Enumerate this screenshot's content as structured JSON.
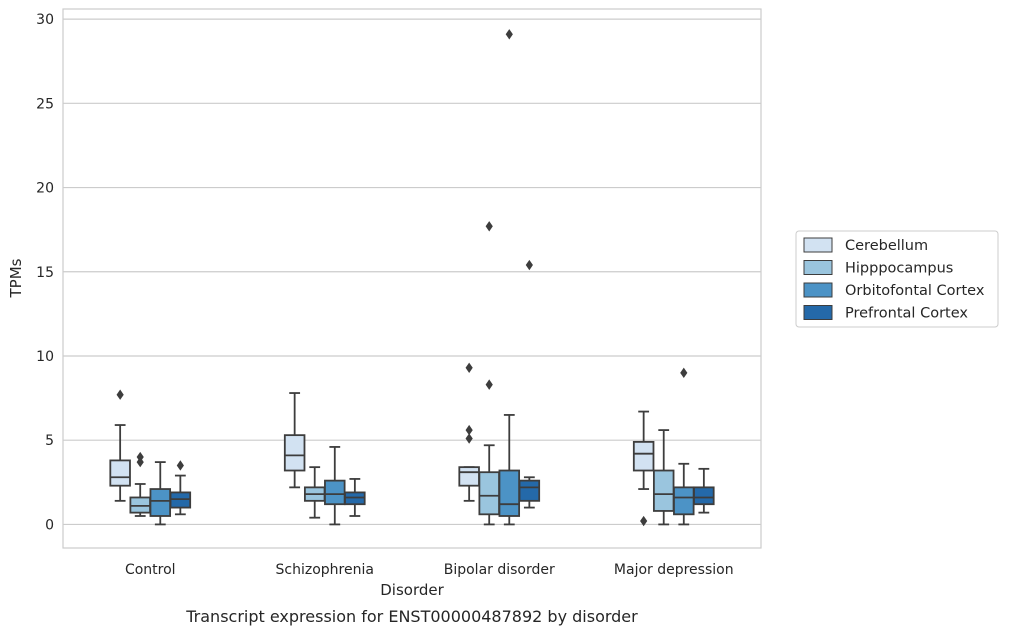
{
  "chart_data": {
    "type": "box",
    "title": "",
    "caption": "Transcript expression for ENST00000487892 by disorder",
    "xlabel": "Disorder",
    "ylabel": "TPMs",
    "ylim": [
      -1.4,
      30.6
    ],
    "yticks": [
      0,
      5,
      10,
      15,
      20,
      25,
      30
    ],
    "grid": "horizontal",
    "legend_placement": "right-outside",
    "categories": [
      "Control",
      "Schizophrenia",
      "Bipolar disorder",
      "Major depression"
    ],
    "series": [
      {
        "name": "Cerebellum",
        "color": "#d2e2f2",
        "boxes": [
          {
            "whisker_low": 1.4,
            "q1": 2.3,
            "median": 2.8,
            "q3": 3.8,
            "whisker_high": 5.9,
            "outliers": [
              7.7
            ]
          },
          {
            "whisker_low": 2.2,
            "q1": 3.2,
            "median": 4.1,
            "q3": 5.3,
            "whisker_high": 7.8,
            "outliers": []
          },
          {
            "whisker_low": 1.4,
            "q1": 2.3,
            "median": 3.1,
            "q3": 3.4,
            "whisker_high": 3.4,
            "outliers": [
              9.3,
              5.6,
              5.1
            ]
          },
          {
            "whisker_low": 2.1,
            "q1": 3.2,
            "median": 4.2,
            "q3": 4.9,
            "whisker_high": 6.7,
            "outliers": [
              0.2
            ]
          }
        ]
      },
      {
        "name": "Hipppocampus",
        "color": "#9ac5de",
        "boxes": [
          {
            "whisker_low": 0.5,
            "q1": 0.7,
            "median": 1.1,
            "q3": 1.6,
            "whisker_high": 2.4,
            "outliers": [
              4.0,
              3.7
            ]
          },
          {
            "whisker_low": 0.4,
            "q1": 1.4,
            "median": 1.8,
            "q3": 2.2,
            "whisker_high": 3.4,
            "outliers": []
          },
          {
            "whisker_low": 0.0,
            "q1": 0.6,
            "median": 1.7,
            "q3": 3.1,
            "whisker_high": 4.7,
            "outliers": [
              17.7,
              8.3
            ]
          },
          {
            "whisker_low": 0.0,
            "q1": 0.8,
            "median": 1.8,
            "q3": 3.2,
            "whisker_high": 5.6,
            "outliers": []
          }
        ]
      },
      {
        "name": "Orbitofontal Cortex",
        "color": "#4c93c6",
        "boxes": [
          {
            "whisker_low": 0.0,
            "q1": 0.5,
            "median": 1.4,
            "q3": 2.1,
            "whisker_high": 3.7,
            "outliers": []
          },
          {
            "whisker_low": 0.0,
            "q1": 1.2,
            "median": 1.8,
            "q3": 2.6,
            "whisker_high": 4.6,
            "outliers": []
          },
          {
            "whisker_low": 0.0,
            "q1": 0.5,
            "median": 1.2,
            "q3": 3.2,
            "whisker_high": 6.5,
            "outliers": [
              29.1
            ]
          },
          {
            "whisker_low": 0.0,
            "q1": 0.6,
            "median": 1.6,
            "q3": 2.2,
            "whisker_high": 3.6,
            "outliers": [
              9.0
            ]
          }
        ]
      },
      {
        "name": "Prefrontal Cortex",
        "color": "#2469a9",
        "boxes": [
          {
            "whisker_low": 0.6,
            "q1": 1.0,
            "median": 1.5,
            "q3": 1.9,
            "whisker_high": 2.9,
            "outliers": [
              3.5
            ]
          },
          {
            "whisker_low": 0.5,
            "q1": 1.2,
            "median": 1.6,
            "q3": 1.9,
            "whisker_high": 2.7,
            "outliers": []
          },
          {
            "whisker_low": 1.0,
            "q1": 1.4,
            "median": 2.2,
            "q3": 2.6,
            "whisker_high": 2.8,
            "outliers": [
              15.4
            ]
          },
          {
            "whisker_low": 0.7,
            "q1": 1.2,
            "median": 1.6,
            "q3": 2.2,
            "whisker_high": 3.3,
            "outliers": []
          }
        ]
      }
    ]
  }
}
